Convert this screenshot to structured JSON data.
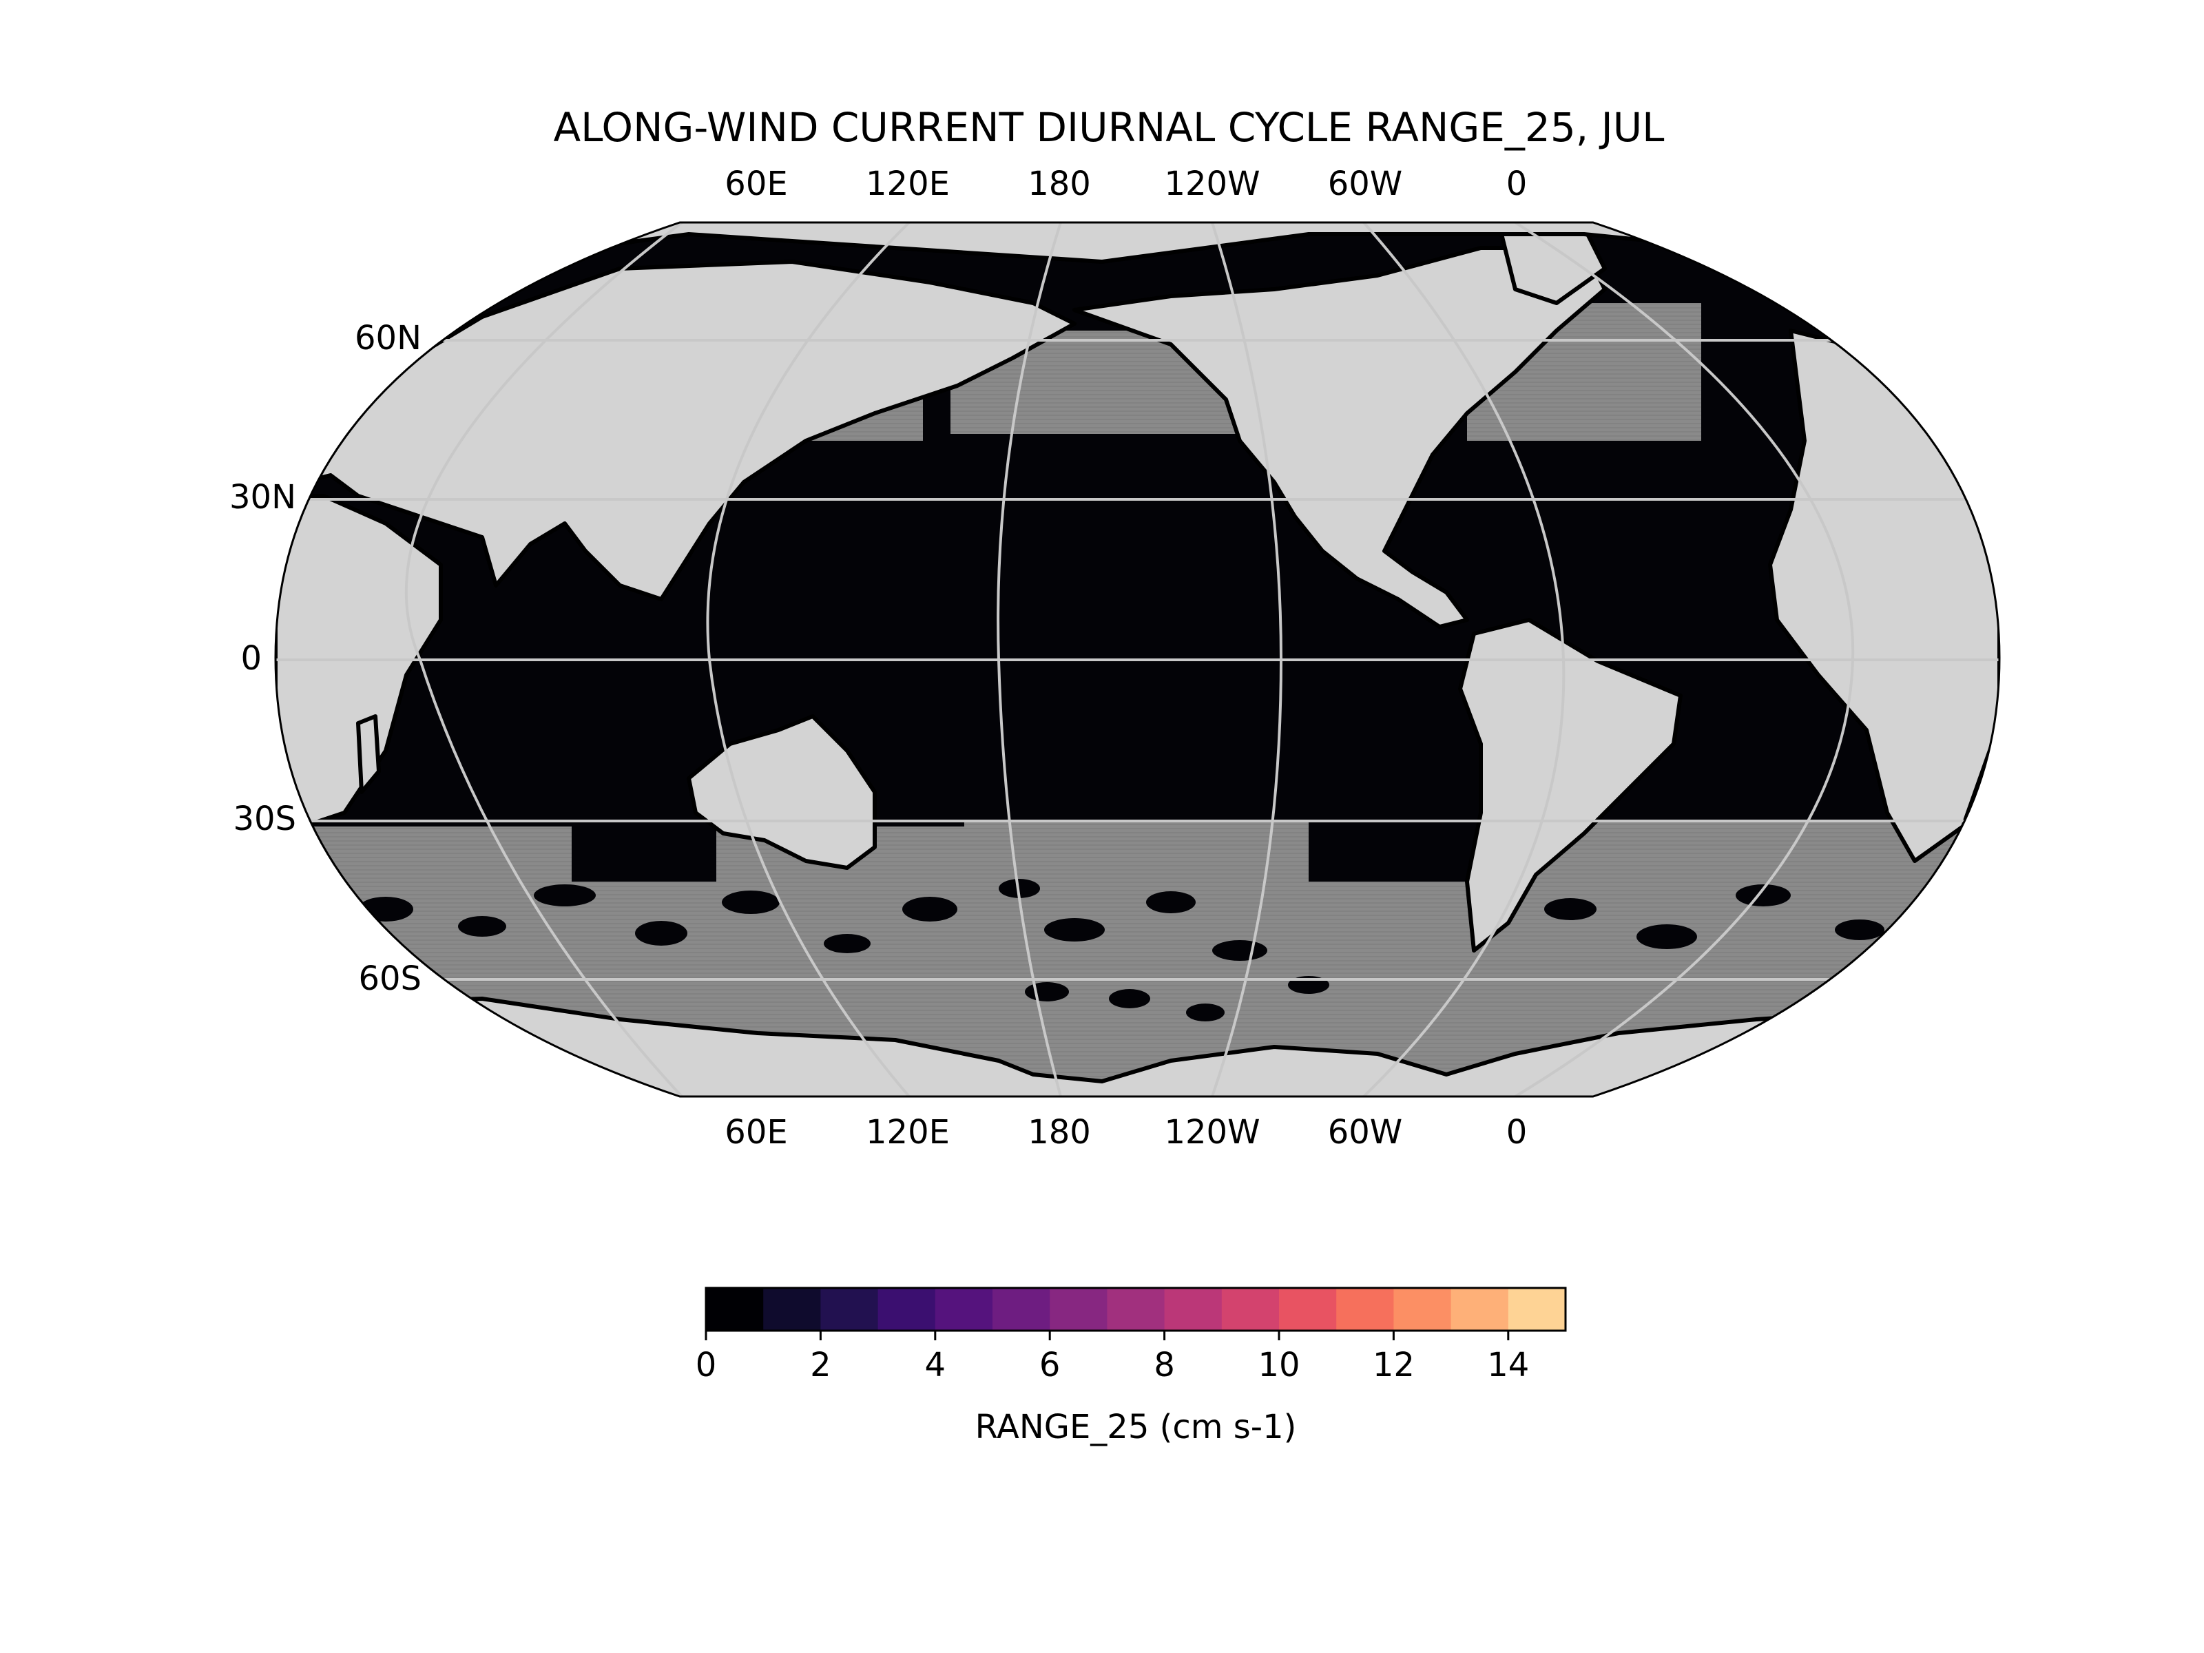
{
  "title": "ALONG-WIND CURRENT DIURNAL CYCLE RANGE_25, JUL",
  "map": {
    "projection": "robinson",
    "central_longitude": "pacific-centered (~200E)",
    "land_color": "#d3d3d3",
    "ocean_low_color": "#030307",
    "ocean_high_color": "#8a8a8a",
    "gridline_color": "#c8c8c8",
    "coastline_color": "#000000"
  },
  "lon_labels_top": [
    "60E",
    "120E",
    "180",
    "120W",
    "60W",
    "0"
  ],
  "lon_labels_bottom": [
    "60E",
    "120E",
    "180",
    "120W",
    "60W",
    "0"
  ],
  "lat_labels": [
    "60N",
    "30N",
    "0",
    "30S",
    "60S"
  ],
  "colorbar": {
    "label": "RANGE_25 (cm s-1)",
    "ticks": [
      "0",
      "2",
      "4",
      "6",
      "8",
      "10",
      "12",
      "14"
    ],
    "vmin": 0,
    "vmax": 15,
    "levels": 15,
    "colormap": "magma",
    "colors": [
      "#000004",
      "#0f0b2d",
      "#221150",
      "#3b0f70",
      "#55137d",
      "#6e1d81",
      "#872781",
      "#a1307e",
      "#bb3778",
      "#d3436e",
      "#e85362",
      "#f6705c",
      "#fc8f64",
      "#feb078",
      "#fed395",
      "#fcfdbf"
    ]
  }
}
